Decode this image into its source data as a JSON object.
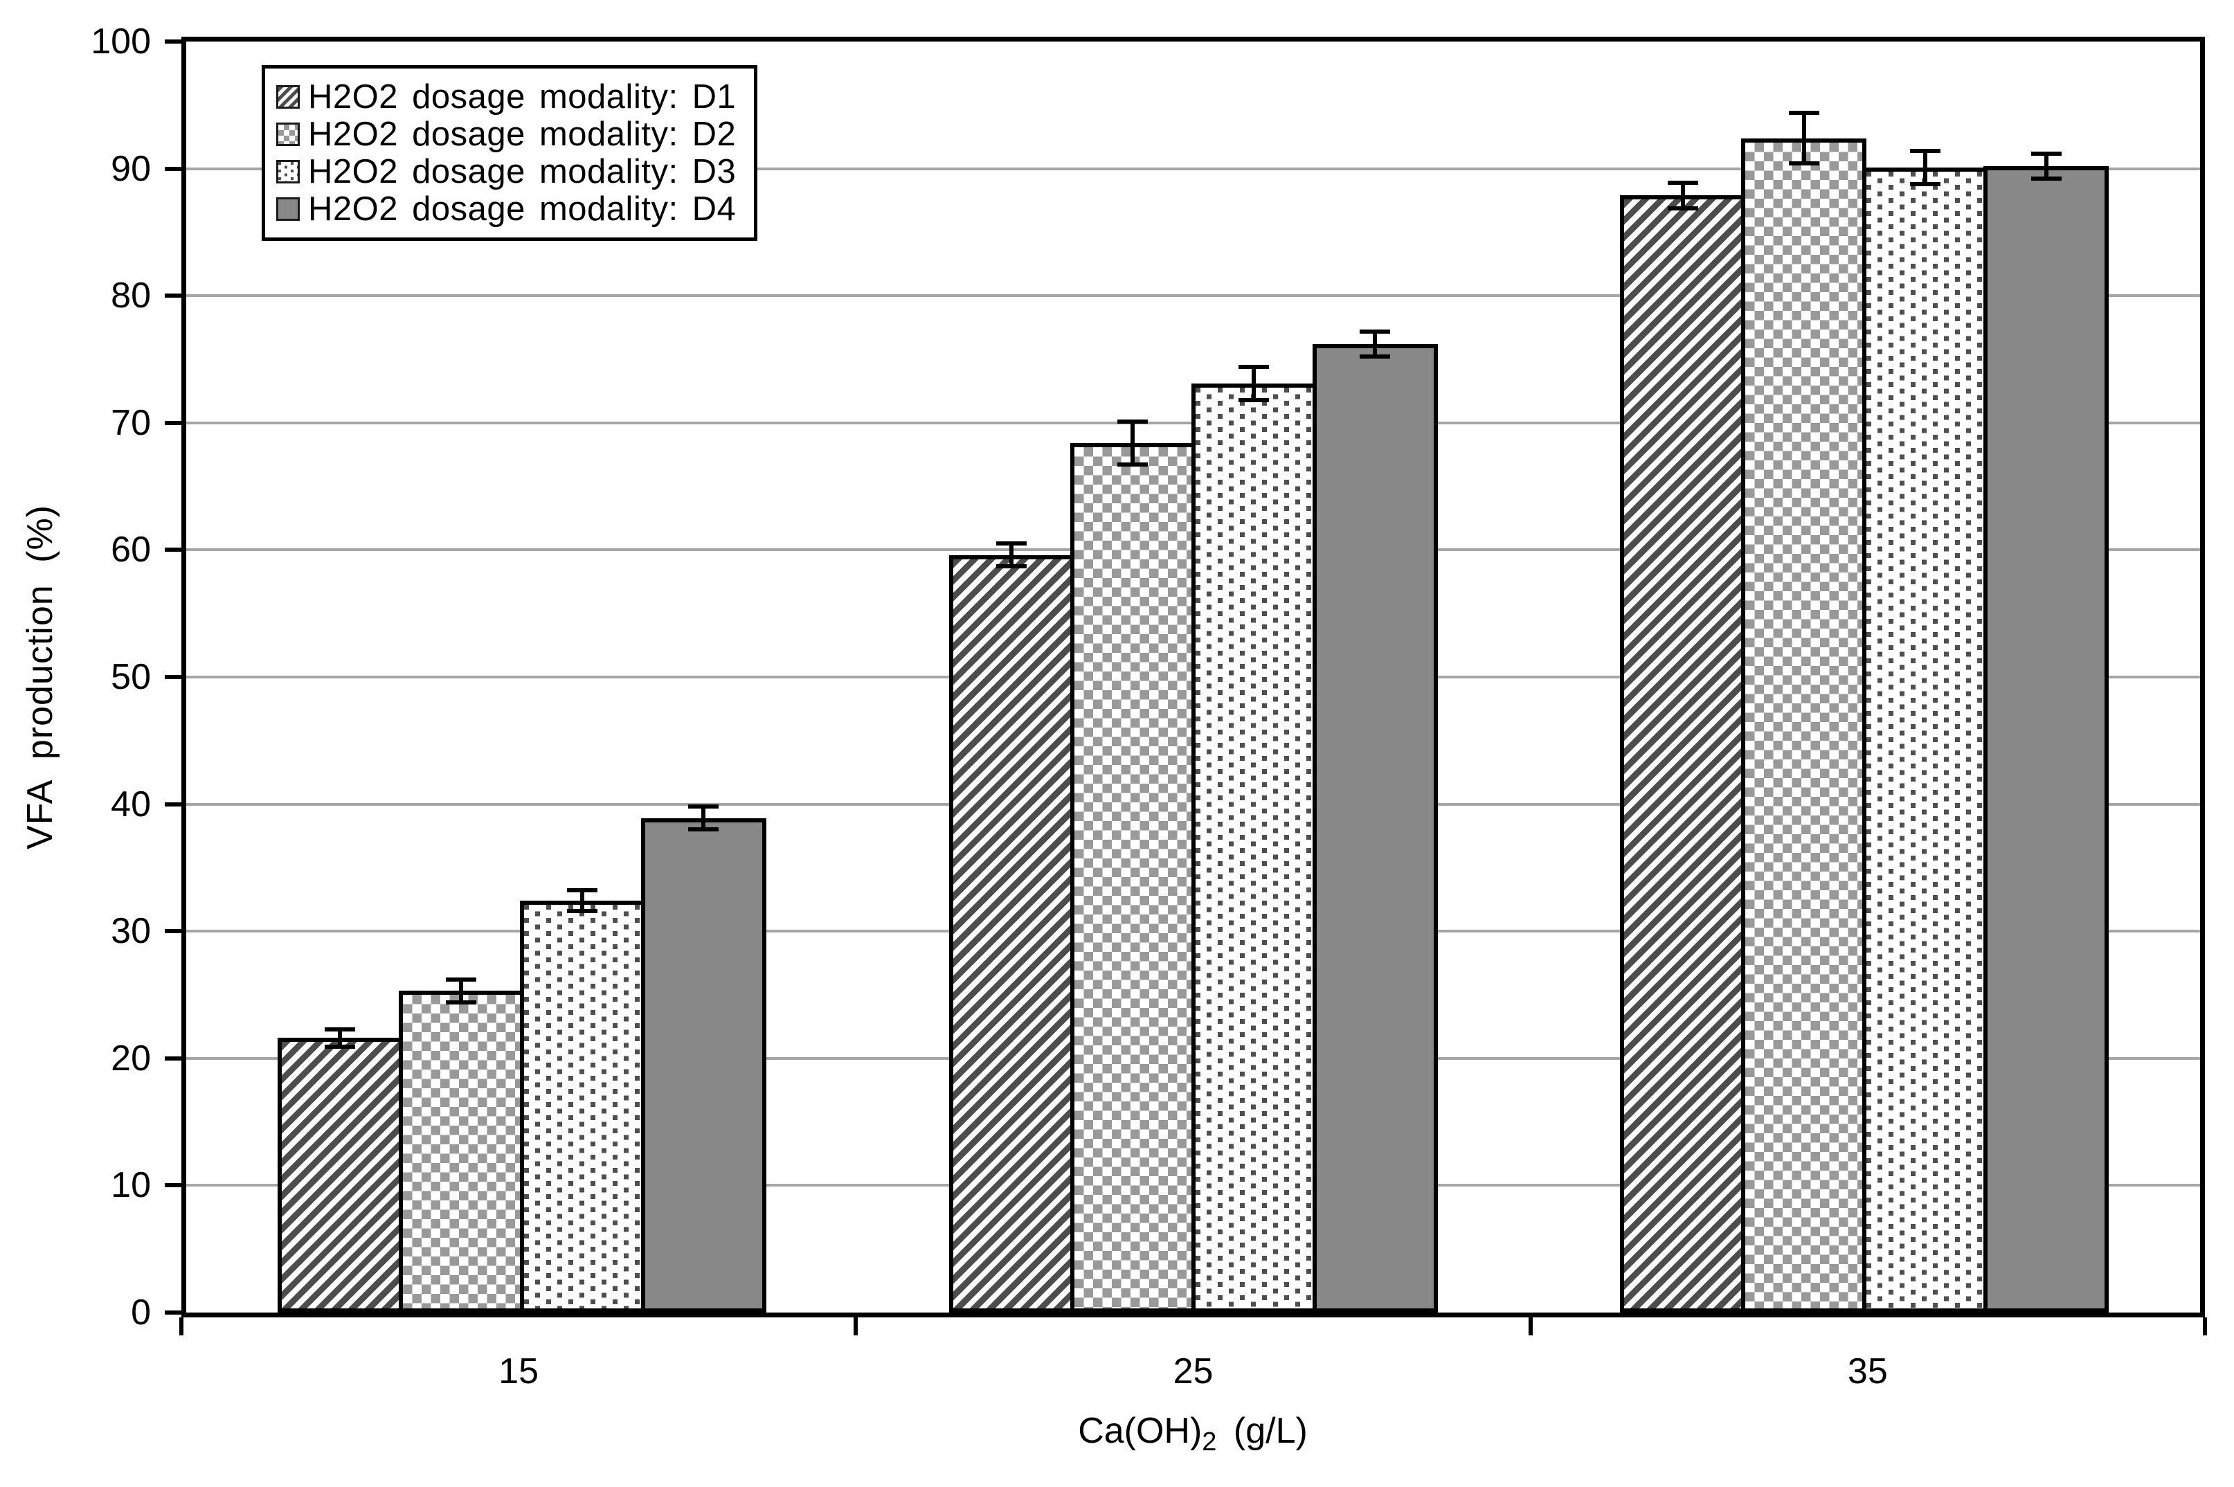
{
  "chart_data": {
    "type": "bar",
    "title": "",
    "categories": [
      "15",
      "25",
      "35"
    ],
    "series": [
      {
        "name": "H2O2 dosage modality: D1",
        "pattern": "diagonal-stripes",
        "values": [
          21.6,
          59.6,
          87.9
        ],
        "errors": [
          0.7,
          0.9,
          1.0
        ]
      },
      {
        "name": "H2O2 dosage modality: D2",
        "pattern": "checkerboard",
        "values": [
          25.3,
          68.4,
          92.4
        ],
        "errors": [
          0.9,
          1.7,
          2.0
        ]
      },
      {
        "name": "H2O2 dosage modality: D3",
        "pattern": "small-dots",
        "values": [
          32.4,
          73.1,
          90.1
        ],
        "errors": [
          0.8,
          1.3,
          1.3
        ]
      },
      {
        "name": "H2O2 dosage modality: D4",
        "pattern": "solid-gray",
        "values": [
          38.9,
          76.2,
          90.2
        ],
        "errors": [
          0.9,
          1.0,
          1.0
        ]
      }
    ],
    "xlabel": {
      "main": "Ca(OH)",
      "sub": "2",
      "rest": " (g/L)"
    },
    "ylabel": "VFA production (%)",
    "ylim": [
      0,
      100
    ],
    "yticks": [
      0,
      10,
      20,
      30,
      40,
      50,
      60,
      70,
      80,
      90,
      100
    ],
    "grid": true,
    "error_bars": true,
    "legend_position": "top-left"
  },
  "colors": {
    "stripe": "#4d4d4d",
    "checker": "#999999",
    "dot": "#4f4f4f",
    "solid": "#888888",
    "gridline": "#a6a6a6",
    "axis": "#000000",
    "background": "#ffffff"
  }
}
